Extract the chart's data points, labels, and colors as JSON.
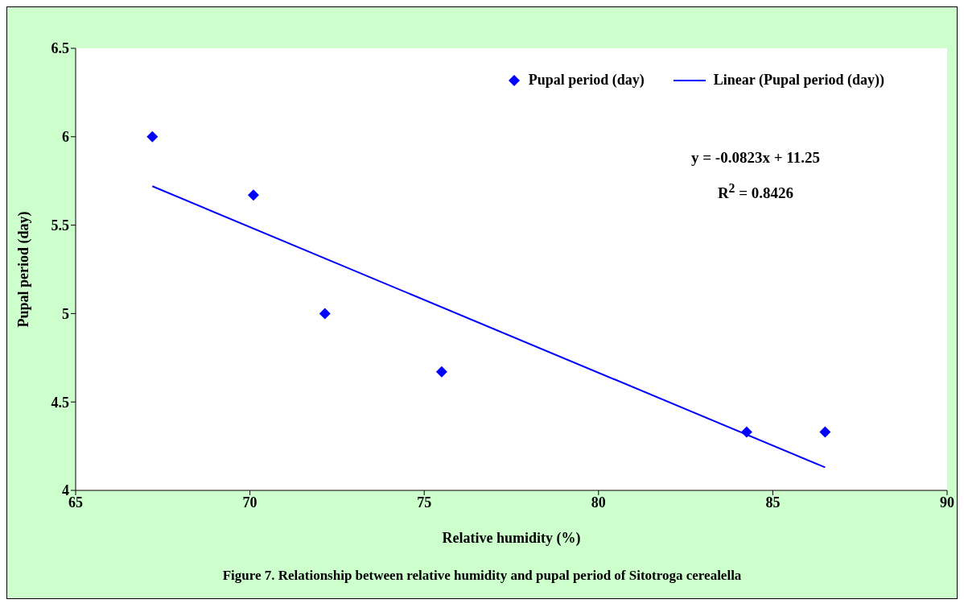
{
  "chart_data": {
    "type": "scatter",
    "title": "Figure 7. Relationship between relative humidity and pupal period of Sitotroga cerealella",
    "xlabel": "Relative humidity (%)",
    "ylabel": "Pupal period (day)",
    "xlim": [
      65,
      90
    ],
    "xticks": [
      65,
      70,
      75,
      80,
      85,
      90
    ],
    "ylim": [
      4,
      6.5
    ],
    "yticks": [
      4,
      4.5,
      5,
      5.5,
      6,
      6.5
    ],
    "series": [
      {
        "name": "Pupal period (day)",
        "marker": "diamond",
        "color": "#0000ff",
        "x": [
          67.2,
          70.1,
          72.15,
          75.5,
          84.25,
          86.5
        ],
        "values": [
          6.0,
          5.67,
          5.0,
          4.67,
          4.33,
          4.33
        ]
      },
      {
        "name": "Linear (Pupal period (day))",
        "type": "line",
        "marker": "none",
        "color": "#0000ff",
        "x": [
          67.2,
          86.5
        ],
        "values": [
          5.72,
          4.13
        ]
      }
    ],
    "annotations": [
      "y = -0.0823x + 11.25",
      "R$^{2}$ = 0.8426"
    ],
    "line_style": "solid",
    "grid": false,
    "legend": "top right"
  }
}
